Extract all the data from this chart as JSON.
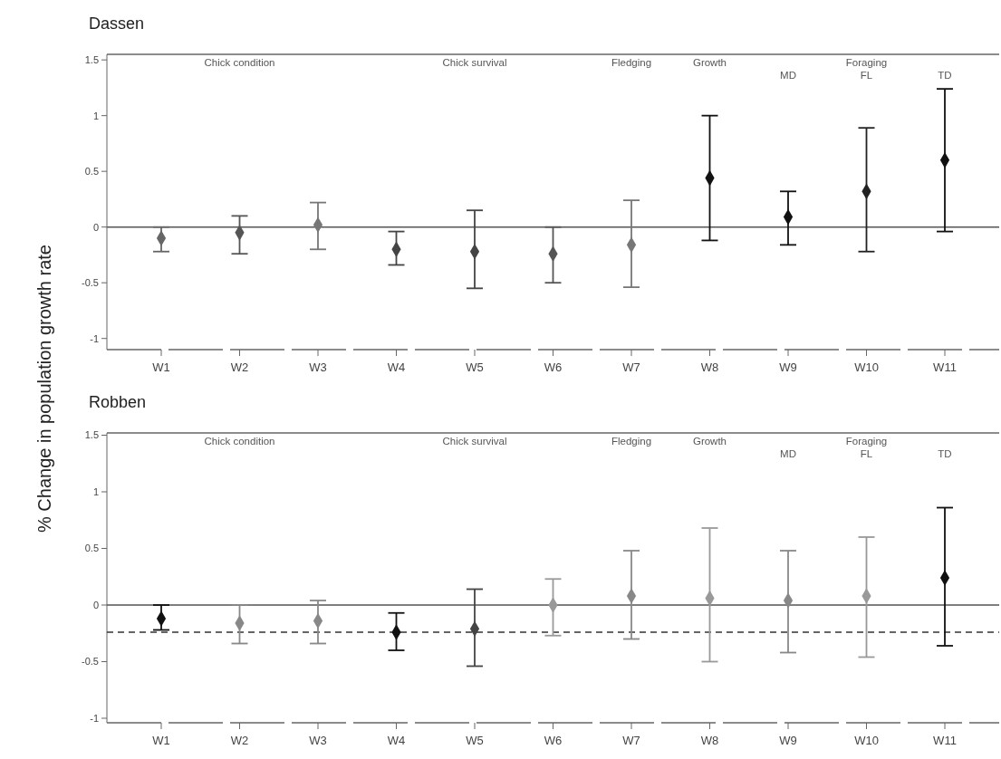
{
  "chart_data": [
    {
      "type": "scatter",
      "title": "Dassen",
      "ylabel": "% Change in population growth rate",
      "categories": [
        "W1",
        "W2",
        "W3",
        "W4",
        "W5",
        "W6",
        "W7",
        "W8",
        "W9",
        "W10",
        "W11"
      ],
      "values": [
        -0.1,
        -0.05,
        0.02,
        -0.2,
        -0.22,
        -0.24,
        -0.16,
        0.44,
        0.09,
        0.32,
        0.6
      ],
      "errors": [
        [
          -0.22,
          0
        ],
        [
          -0.24,
          0.1
        ],
        [
          -0.2,
          0.22
        ],
        [
          -0.34,
          -0.04
        ],
        [
          -0.55,
          0.15
        ],
        [
          -0.5,
          0
        ],
        [
          -0.54,
          0.24
        ],
        [
          -0.12,
          1.0
        ],
        [
          -0.16,
          0.32
        ],
        [
          -0.22,
          0.89
        ],
        [
          -0.04,
          1.24
        ]
      ],
      "colors": [
        "#666666",
        "#555555",
        "#777777",
        "#444444",
        "#444444",
        "#555555",
        "#777777",
        "#111111",
        "#111111",
        "#222222",
        "#111111"
      ],
      "marker": "diamond",
      "ylim": [
        -1.1,
        1.55
      ],
      "yticks": [
        -1,
        -0.5,
        0,
        0.5,
        1,
        1.5
      ],
      "ref_lines": [
        {
          "axis": "y",
          "value": 0,
          "color": "#555555",
          "line_style": "solid"
        }
      ],
      "annotations": [
        "Chick condition",
        "Chick survival",
        "Fledging",
        "Growth",
        "Foraging",
        "MD",
        "FL",
        "TD"
      ],
      "grid": false
    },
    {
      "type": "scatter",
      "title": "Robben",
      "categories": [
        "W1",
        "W2",
        "W3",
        "W4",
        "W5",
        "W6",
        "W7",
        "W8",
        "W9",
        "W10",
        "W11"
      ],
      "values": [
        -0.12,
        -0.16,
        -0.14,
        -0.24,
        -0.21,
        0,
        0.08,
        0.06,
        0.04,
        0.08,
        0.24
      ],
      "errors": [
        [
          -0.22,
          0
        ],
        [
          -0.34,
          0
        ],
        [
          -0.34,
          0.04
        ],
        [
          -0.4,
          -0.07
        ],
        [
          -0.54,
          0.14
        ],
        [
          -0.27,
          0.23
        ],
        [
          -0.3,
          0.48
        ],
        [
          -0.5,
          0.68
        ],
        [
          -0.42,
          0.48
        ],
        [
          -0.46,
          0.6
        ],
        [
          -0.36,
          0.86
        ]
      ],
      "colors": [
        "#111111",
        "#888888",
        "#888888",
        "#111111",
        "#444444",
        "#999999",
        "#888888",
        "#999999",
        "#888888",
        "#999999",
        "#111111"
      ],
      "marker": "diamond",
      "ylim": [
        -1.04,
        1.52
      ],
      "yticks": [
        -1,
        -0.5,
        0,
        0.5,
        1,
        1.5
      ],
      "ref_lines": [
        {
          "axis": "y",
          "value": 0,
          "color": "#555555",
          "line_style": "solid"
        },
        {
          "axis": "y",
          "value": -0.24,
          "color": "#333333",
          "line_style": "dashed"
        }
      ],
      "annotations": [
        "Chick condition",
        "Chick survival",
        "Fledging",
        "Growth",
        "Foraging",
        "MD",
        "FL",
        "TD"
      ],
      "grid": false
    }
  ]
}
